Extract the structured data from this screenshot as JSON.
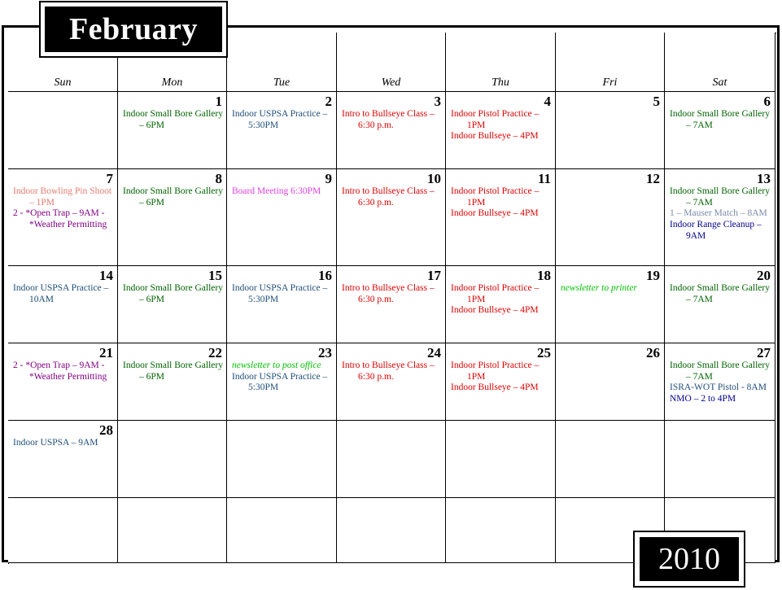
{
  "month": "February",
  "year": "2010",
  "day_names": [
    "Sun",
    "Mon",
    "Tue",
    "Wed",
    "Thu",
    "Fri",
    "Sat"
  ],
  "colors": {
    "green": "#006400",
    "steel": "#1f4e79",
    "red": "#e00000",
    "salmon": "#e87a6e",
    "purple": "#800080",
    "magenta": "#e040e0",
    "lime": "#00c000",
    "grayblue": "#7a8aa6",
    "navy": "#00008b"
  },
  "weeks": [
    [
      {
        "day": "",
        "events": []
      },
      {
        "day": "1",
        "events": [
          {
            "text": "Indoor Small Bore Gallery – 6PM",
            "color": "#006400"
          }
        ]
      },
      {
        "day": "2",
        "events": [
          {
            "text": "Indoor USPSA Practice – 5:30PM",
            "color": "#1f4e79"
          }
        ]
      },
      {
        "day": "3",
        "events": [
          {
            "text": "Intro to Bullseye Class – 6:30 p.m.",
            "color": "#e00000"
          }
        ]
      },
      {
        "day": "4",
        "events": [
          {
            "text": "Indoor Pistol Practice – 1PM",
            "color": "#e00000"
          },
          {
            "text": "Indoor Bullseye – 4PM",
            "color": "#e00000"
          }
        ]
      },
      {
        "day": "5",
        "events": []
      },
      {
        "day": "6",
        "events": [
          {
            "text": "Indoor Small Bore Gallery – 7AM",
            "color": "#006400"
          }
        ]
      }
    ],
    [
      {
        "day": "7",
        "events": [
          {
            "text": "Indoor Bowling Pin Shoot – 1PM",
            "color": "#e87a6e"
          },
          {
            "text": "2 - *Open Trap – 9AM - *Weather Permitting",
            "color": "#800080"
          }
        ]
      },
      {
        "day": "8",
        "events": [
          {
            "text": "Indoor Small Bore Gallery – 6PM",
            "color": "#006400"
          }
        ]
      },
      {
        "day": "9",
        "events": [
          {
            "text": "Board Meeting 6:30PM",
            "color": "#e040e0"
          }
        ]
      },
      {
        "day": "10",
        "events": [
          {
            "text": "Intro to Bullseye Class – 6:30 p.m.",
            "color": "#e00000"
          }
        ]
      },
      {
        "day": "11",
        "events": [
          {
            "text": "Indoor Pistol Practice – 1PM",
            "color": "#e00000"
          },
          {
            "text": "Indoor Bullseye – 4PM",
            "color": "#e00000"
          }
        ]
      },
      {
        "day": "12",
        "events": []
      },
      {
        "day": "13",
        "events": [
          {
            "text": "Indoor Small Bore Gallery – 7AM",
            "color": "#006400"
          },
          {
            "text": "1 – Mauser Match – 8AM",
            "color": "#7a8aa6"
          },
          {
            "text": "Indoor Range Cleanup – 9AM",
            "color": "#00008b"
          }
        ]
      }
    ],
    [
      {
        "day": "14",
        "events": [
          {
            "text": "Indoor USPSA Practice – 10AM",
            "color": "#1f4e79"
          }
        ]
      },
      {
        "day": "15",
        "events": [
          {
            "text": "Indoor Small Bore Gallery – 6PM",
            "color": "#006400"
          }
        ]
      },
      {
        "day": "16",
        "events": [
          {
            "text": "Indoor USPSA Practice – 5:30PM",
            "color": "#1f4e79"
          }
        ]
      },
      {
        "day": "17",
        "events": [
          {
            "text": "Intro to Bullseye Class – 6:30 p.m.",
            "color": "#e00000"
          }
        ]
      },
      {
        "day": "18",
        "events": [
          {
            "text": "Indoor Pistol Practice – 1PM",
            "color": "#e00000"
          },
          {
            "text": "Indoor Bullseye – 4PM",
            "color": "#e00000"
          }
        ]
      },
      {
        "day": "19",
        "events": [
          {
            "text": "newsletter to printer",
            "color": "#00c000",
            "italic": true
          }
        ]
      },
      {
        "day": "20",
        "events": [
          {
            "text": "Indoor Small Bore Gallery – 7AM",
            "color": "#006400"
          }
        ]
      }
    ],
    [
      {
        "day": "21",
        "events": [
          {
            "text": "2 - *Open Trap – 9AM - *Weather Permitting",
            "color": "#800080"
          }
        ]
      },
      {
        "day": "22",
        "events": [
          {
            "text": "Indoor Small Bore Gallery – 6PM",
            "color": "#006400"
          }
        ]
      },
      {
        "day": "23",
        "events": [
          {
            "text": "newsletter to post office",
            "color": "#00c000",
            "italic": true
          },
          {
            "text": "Indoor USPSA Practice – 5:30PM",
            "color": "#1f4e79"
          }
        ]
      },
      {
        "day": "24",
        "events": [
          {
            "text": "Intro to Bullseye Class – 6:30 p.m.",
            "color": "#e00000"
          }
        ]
      },
      {
        "day": "25",
        "events": [
          {
            "text": "Indoor Pistol Practice – 1PM",
            "color": "#e00000"
          },
          {
            "text": "Indoor Bullseye – 4PM",
            "color": "#e00000"
          }
        ]
      },
      {
        "day": "26",
        "events": []
      },
      {
        "day": "27",
        "events": [
          {
            "text": "Indoor Small Bore Gallery – 7AM",
            "color": "#006400"
          },
          {
            "text": "ISRA-WOT Pistol - 8AM",
            "color": "#1f4e79"
          },
          {
            "text": "NMO – 2 to 4PM",
            "color": "#00008b"
          }
        ]
      }
    ],
    [
      {
        "day": "28",
        "events": [
          {
            "text": "Indoor USPSA – 9AM",
            "color": "#1f4e79"
          }
        ]
      },
      {
        "day": "",
        "events": []
      },
      {
        "day": "",
        "events": []
      },
      {
        "day": "",
        "events": []
      },
      {
        "day": "",
        "events": []
      },
      {
        "day": "",
        "events": []
      },
      {
        "day": "",
        "events": []
      }
    ],
    [
      {
        "day": "",
        "events": []
      },
      {
        "day": "",
        "events": []
      },
      {
        "day": "",
        "events": []
      },
      {
        "day": "",
        "events": []
      },
      {
        "day": "",
        "events": []
      },
      {
        "day": "",
        "events": []
      },
      {
        "day": "",
        "events": []
      }
    ]
  ]
}
